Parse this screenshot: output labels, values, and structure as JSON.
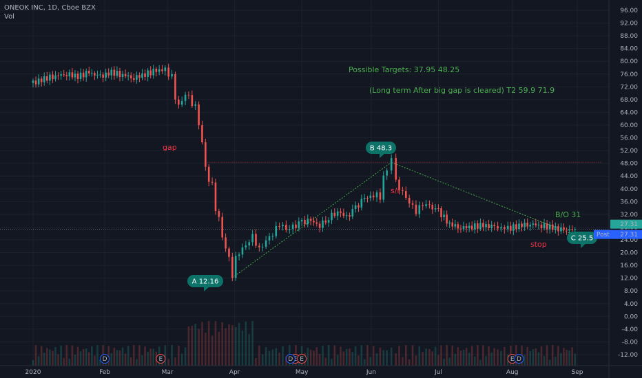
{
  "legend": {
    "symbol": "ONEOK INC, 1D, Cboe BZX",
    "volume": "Vol"
  },
  "colors": {
    "up": "#26a69a",
    "down": "#ef5350",
    "annotation_green": "#4caf50",
    "annotation_red": "#f23645",
    "bubble": "#0d7368",
    "price_tag": "#26a69a",
    "post_tag": "#2962ff"
  },
  "chart_data": {
    "type": "candlestick",
    "x_ticks": [
      {
        "label": "2020",
        "date": "2020-01-02"
      },
      {
        "label": "Feb",
        "date": "2020-02-03"
      },
      {
        "label": "Mar",
        "date": "2020-03-02"
      },
      {
        "label": "Apr",
        "date": "2020-04-01"
      },
      {
        "label": "May",
        "date": "2020-05-01"
      },
      {
        "label": "Jun",
        "date": "2020-06-01"
      },
      {
        "label": "Jul",
        "date": "2020-07-01"
      },
      {
        "label": "Aug",
        "date": "2020-08-03"
      },
      {
        "label": "Sep",
        "date": "2020-09-01"
      }
    ],
    "y_ticks": [
      "96.00",
      "92.00",
      "88.00",
      "84.00",
      "80.00",
      "76.00",
      "72.00",
      "68.00",
      "64.00",
      "60.00",
      "56.00",
      "52.00",
      "48.00",
      "44.00",
      "40.00",
      "36.00",
      "32.00",
      "28.00",
      "24.00",
      "20.00",
      "16.00",
      "12.00",
      "8.00",
      "4.00",
      "0.00",
      "-4.00",
      "-8.00",
      "-12.00"
    ],
    "ylim": [
      -14,
      98
    ],
    "grid": true,
    "price_close": [
      [
        "2020-01-02",
        73.2
      ],
      [
        "2020-01-07",
        74.5
      ],
      [
        "2020-01-12",
        75.5
      ],
      [
        "2020-01-17",
        76.0
      ],
      [
        "2020-01-22",
        75.3
      ],
      [
        "2020-01-27",
        76.4
      ],
      [
        "2020-02-01",
        75.2
      ],
      [
        "2020-02-06",
        76.5
      ],
      [
        "2020-02-11",
        75.8
      ],
      [
        "2020-02-16",
        74.8
      ],
      [
        "2020-02-21",
        76.0
      ],
      [
        "2020-02-26",
        77.0
      ],
      [
        "2020-03-01",
        77.5
      ],
      [
        "2020-03-04",
        74.0
      ],
      [
        "2020-03-07",
        66.0
      ],
      [
        "2020-03-10",
        70.0
      ],
      [
        "2020-03-13",
        68.0
      ],
      [
        "2020-03-16",
        61.0
      ],
      [
        "2020-03-19",
        46.0
      ],
      [
        "2020-03-22",
        40.0
      ],
      [
        "2020-03-25",
        30.0
      ],
      [
        "2020-03-28",
        22.0
      ],
      [
        "2020-03-31",
        14.0
      ],
      [
        "2020-04-03",
        20.0
      ],
      [
        "2020-04-06",
        22.0
      ],
      [
        "2020-04-09",
        25.0
      ],
      [
        "2020-04-12",
        21.0
      ],
      [
        "2020-04-15",
        24.0
      ],
      [
        "2020-04-18",
        26.0
      ],
      [
        "2020-04-21",
        29.0
      ],
      [
        "2020-04-24",
        27.0
      ],
      [
        "2020-04-27",
        28.0
      ],
      [
        "2020-05-01",
        29.5
      ],
      [
        "2020-05-05",
        30.0
      ],
      [
        "2020-05-09",
        28.5
      ],
      [
        "2020-05-13",
        31.0
      ],
      [
        "2020-05-17",
        33.0
      ],
      [
        "2020-05-21",
        31.0
      ],
      [
        "2020-05-25",
        34.0
      ],
      [
        "2020-05-29",
        37.0
      ],
      [
        "2020-06-02",
        38.0
      ],
      [
        "2020-06-05",
        38.5
      ],
      [
        "2020-06-08",
        46.0
      ],
      [
        "2020-06-10",
        48.3
      ],
      [
        "2020-06-12",
        42.0
      ],
      [
        "2020-06-15",
        39.0
      ],
      [
        "2020-06-18",
        36.0
      ],
      [
        "2020-06-21",
        33.0
      ],
      [
        "2020-06-24",
        35.0
      ],
      [
        "2020-06-27",
        34.5
      ],
      [
        "2020-07-01",
        33.0
      ],
      [
        "2020-07-06",
        29.0
      ],
      [
        "2020-07-11",
        27.8
      ],
      [
        "2020-07-16",
        28.2
      ],
      [
        "2020-07-21",
        28.5
      ],
      [
        "2020-07-26",
        28.0
      ],
      [
        "2020-08-01",
        27.5
      ],
      [
        "2020-08-06",
        28.5
      ],
      [
        "2020-08-11",
        29.0
      ],
      [
        "2020-08-16",
        28.5
      ],
      [
        "2020-08-21",
        27.8
      ],
      [
        "2020-08-26",
        27.0
      ],
      [
        "2020-08-31",
        27.31
      ]
    ],
    "volume_shape": "bars",
    "last_price": "27.31",
    "post_label": "Post",
    "post_price": "27.31",
    "annotations": {
      "targets": "Possible Targets:  37.95   48.25",
      "long_term": "(Long term After big gap is cleared) T2  59.9  71.9",
      "gap": "gap",
      "bo": "B/O 31",
      "stop": "stop",
      "sr": "s/r",
      "point_a": "A 12.16",
      "point_b": "B 48.3",
      "point_c": "C 25.5"
    },
    "points": {
      "A": {
        "date": "2020-03-31",
        "price": 12.16
      },
      "B": {
        "date": "2020-06-10",
        "price": 48.3
      },
      "C": {
        "date": "2020-08-31",
        "price": 25.5
      }
    },
    "earnings_markers": [
      {
        "label": "D",
        "date": "2020-02-03"
      },
      {
        "label": "E",
        "date": "2020-02-28"
      },
      {
        "label": "E",
        "date": "2020-04-28"
      },
      {
        "label": "E",
        "date": "2020-05-01"
      },
      {
        "label": "E",
        "date": "2020-08-03"
      },
      {
        "label": "D",
        "date": "2020-08-06"
      },
      {
        "label": "D",
        "date": "2020-04-26"
      }
    ]
  }
}
